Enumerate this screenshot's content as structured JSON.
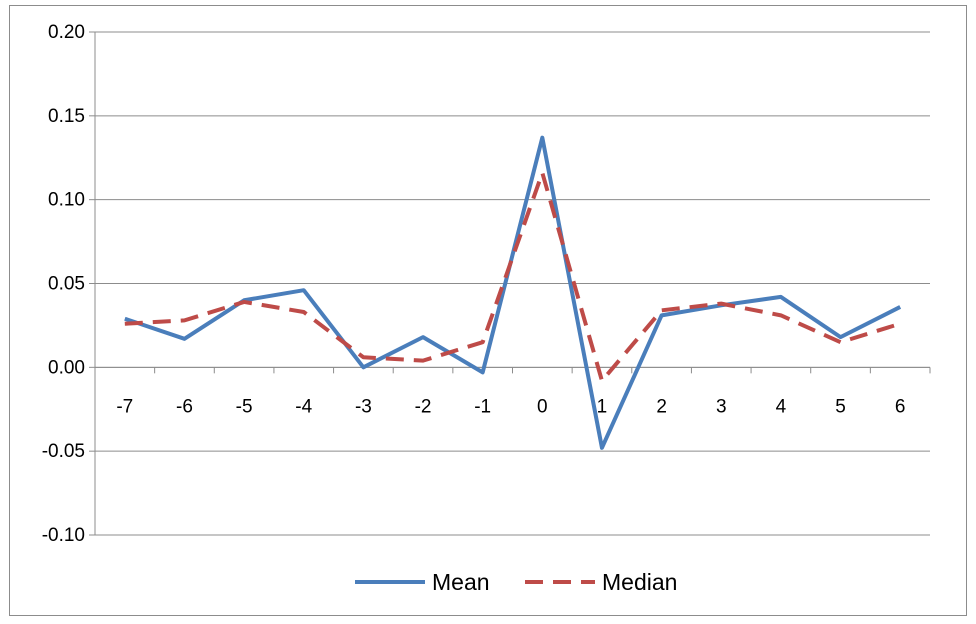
{
  "chart_data": {
    "type": "line",
    "title": "",
    "xlabel": "",
    "ylabel": "",
    "categories": [
      "-7",
      "-6",
      "-5",
      "-4",
      "-3",
      "-2",
      "-1",
      "0",
      "1",
      "2",
      "3",
      "4",
      "5",
      "6"
    ],
    "y_ticks": [
      "0.20",
      "0.15",
      "0.10",
      "0.05",
      "0.00",
      "-0.05",
      "-0.10"
    ],
    "ylim": [
      -0.1,
      0.2
    ],
    "grid": "horizontal",
    "legend_position": "bottom",
    "series": [
      {
        "name": "Mean",
        "style": "solid",
        "color": "#4a7ebb",
        "values": [
          0.029,
          0.017,
          0.04,
          0.046,
          0.0,
          0.018,
          -0.003,
          0.137,
          -0.048,
          0.031,
          0.037,
          0.042,
          0.018,
          0.036
        ]
      },
      {
        "name": "Median",
        "style": "dashed",
        "color": "#be4b48",
        "values": [
          0.026,
          0.028,
          0.039,
          0.033,
          0.006,
          0.004,
          0.015,
          0.116,
          -0.008,
          0.034,
          0.038,
          0.031,
          0.015,
          0.026
        ]
      }
    ]
  }
}
